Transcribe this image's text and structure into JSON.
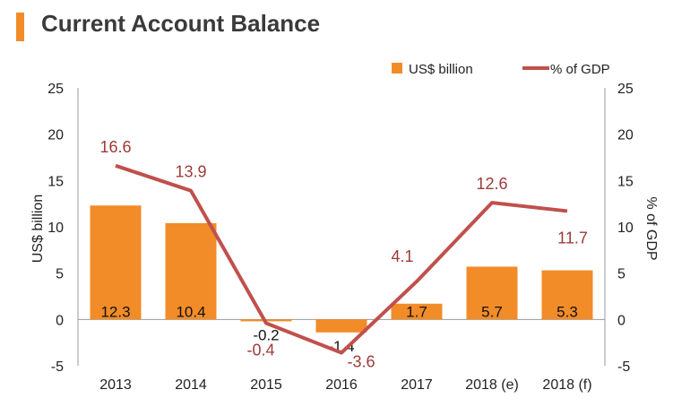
{
  "chart_data": {
    "type": "bar",
    "title": "Current Account Balance",
    "categories": [
      "2013",
      "2014",
      "2015",
      "2016",
      "2017",
      "2018 (e)",
      "2018 (f)"
    ],
    "series": [
      {
        "name": "US$ billion",
        "type": "bar",
        "axis": "left",
        "color": "#f28c28",
        "values": [
          12.3,
          10.4,
          -0.2,
          -1.4,
          1.7,
          5.7,
          5.3
        ],
        "labels": [
          "12.3",
          "10.4",
          "-0.2",
          "-1.4",
          "1.7",
          "5.7",
          "5.3"
        ]
      },
      {
        "name": "% of GDP",
        "type": "line",
        "axis": "right",
        "color": "#c0504d",
        "values": [
          16.6,
          13.9,
          -0.4,
          -3.6,
          4.1,
          12.6,
          11.7
        ],
        "labels": [
          "16.6",
          "13.9",
          "-0.4",
          "-3.6",
          "4.1",
          "12.6",
          "11.7"
        ]
      }
    ],
    "ylabel_left": "US$ billion",
    "ylabel_right": "% of GDP",
    "ylim": [
      -5,
      25
    ],
    "yticks": [
      "-5",
      "0",
      "5",
      "10",
      "15",
      "20",
      "25"
    ],
    "legend_position": "top-right",
    "grid": false
  }
}
